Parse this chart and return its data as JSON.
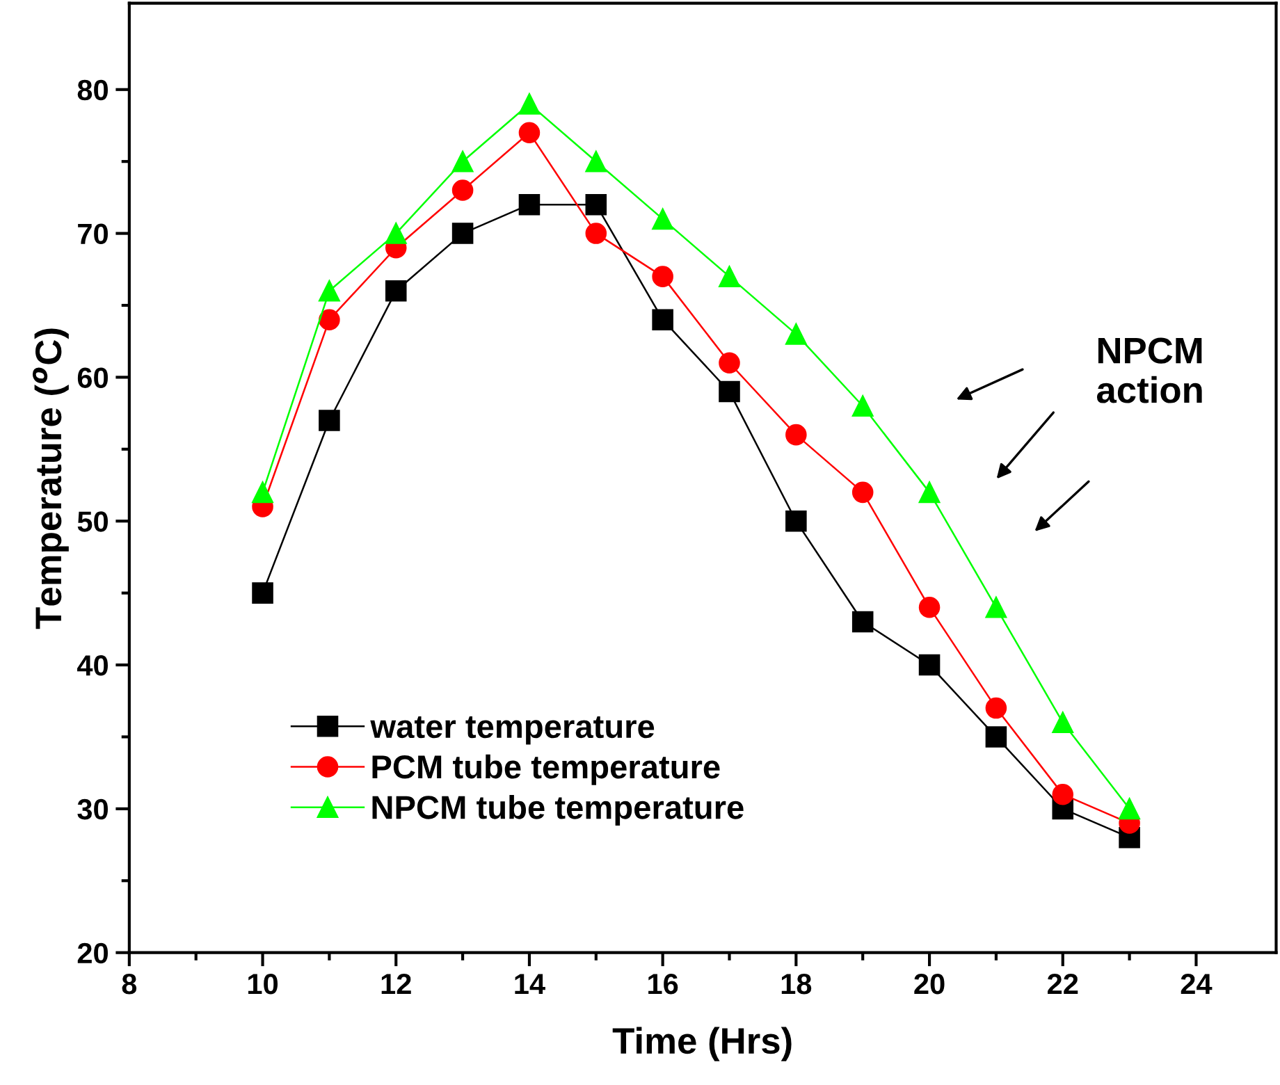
{
  "chart_data": {
    "type": "line",
    "xlabel": "Time (Hrs)",
    "ylabel": "Temperature ($^{o}$C)",
    "x": [
      10,
      11,
      12,
      13,
      14,
      15,
      16,
      17,
      18,
      19,
      20,
      21,
      22,
      23
    ],
    "series": [
      {
        "name": "water temperature",
        "color": "#000000",
        "marker": "square",
        "values": [
          45,
          57,
          66,
          70,
          72,
          72,
          64,
          59,
          50,
          43,
          40,
          35,
          30,
          28
        ]
      },
      {
        "name": "PCM tube temperature",
        "color": "#ff0000",
        "marker": "circle",
        "values": [
          51,
          64,
          69,
          73,
          77,
          70,
          67,
          61,
          56,
          52,
          44,
          37,
          31,
          29
        ]
      },
      {
        "name": "NPCM tube temperature",
        "color": "#00ff00",
        "marker": "triangle",
        "values": [
          52,
          66,
          70,
          75,
          79,
          75,
          71,
          67,
          63,
          58,
          52,
          44,
          36,
          30
        ]
      }
    ],
    "xlim": [
      8,
      25.2
    ],
    "ylim": [
      20,
      86
    ],
    "xticks": [
      8,
      {
        "value": 9,
        "label": null
      },
      10,
      {
        "value": 11,
        "label": null
      },
      12,
      {
        "value": 13,
        "label": null
      },
      14,
      {
        "value": 15,
        "label": null
      },
      16,
      {
        "value": 17,
        "label": null
      },
      18,
      {
        "value": 19,
        "label": null
      },
      20,
      {
        "value": 21,
        "label": null
      },
      22,
      {
        "value": 23,
        "label": null
      },
      24
    ],
    "yticks": [
      20,
      {
        "value": 25,
        "label": null
      },
      30,
      {
        "value": 35,
        "label": null
      },
      40,
      {
        "value": 45,
        "label": null
      },
      50,
      {
        "value": 55,
        "label": null
      },
      60,
      {
        "value": 65,
        "label": null
      },
      70,
      {
        "value": 75,
        "label": null
      },
      80
    ],
    "annotations": [
      "NPCM\naction"
    ],
    "legend": "bottom left",
    "grid": false,
    "line_style": "solid"
  }
}
